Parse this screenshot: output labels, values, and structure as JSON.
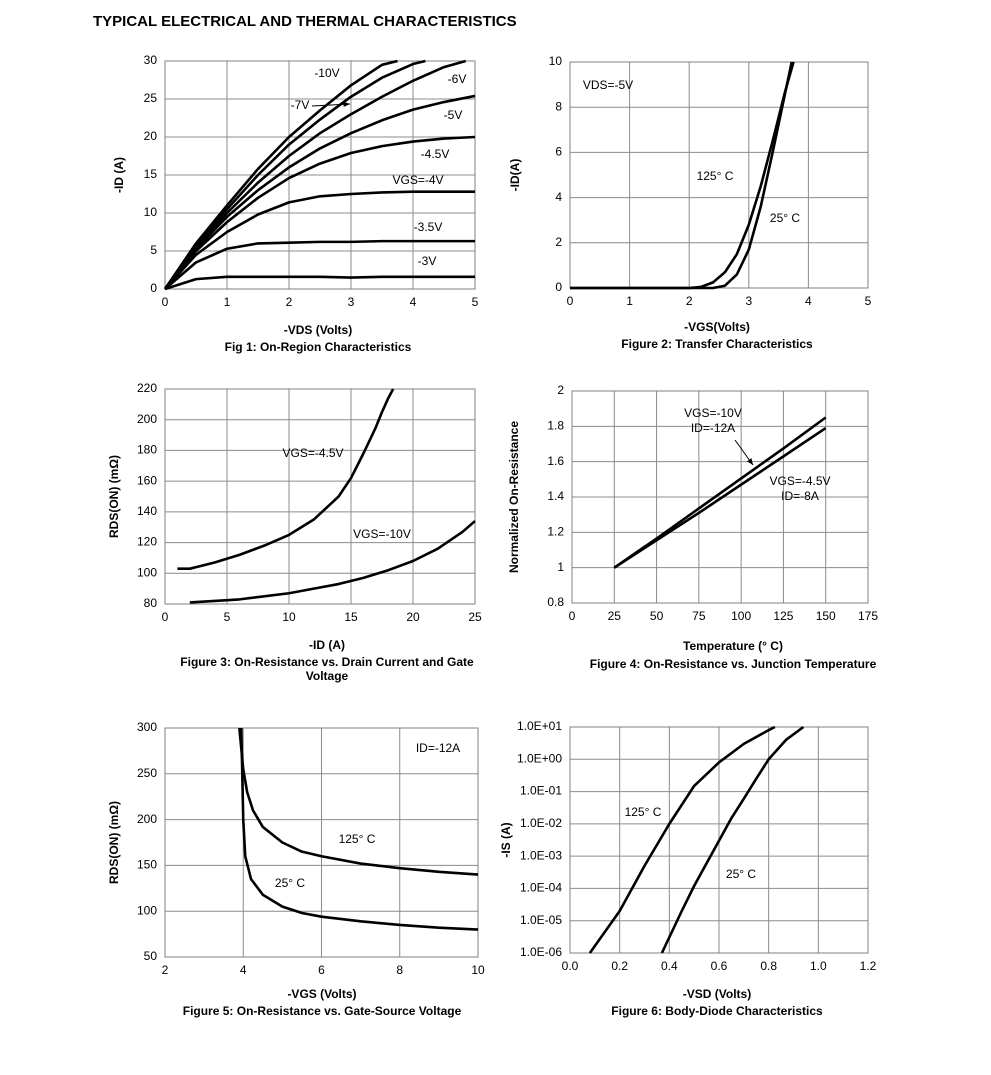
{
  "title": "TYPICAL ELECTRICAL AND THERMAL CHARACTERISTICS",
  "chart_data": [
    {
      "type": "line",
      "caption": "Fig 1: On-Region Characteristics",
      "xlabel": "-VDS (Volts)",
      "ylabel": "-ID (A)",
      "xlim": [
        0,
        5
      ],
      "xticks": [
        0,
        1,
        2,
        3,
        4,
        5
      ],
      "ylim": [
        0,
        30
      ],
      "yticks": [
        0,
        5,
        10,
        15,
        20,
        25,
        30
      ],
      "grid": true,
      "series": [
        {
          "name": "-10V",
          "color": "#000000",
          "x": [
            0,
            0.5,
            1,
            1.5,
            2,
            2.5,
            3,
            3.5,
            3.75
          ],
          "values": [
            0,
            6,
            11,
            15.8,
            20,
            23.5,
            26.8,
            29.5,
            30
          ]
        },
        {
          "name": "-7V",
          "color": "#000000",
          "x": [
            0,
            0.5,
            1,
            1.5,
            2,
            2.5,
            3,
            3.5,
            4,
            4.2
          ],
          "values": [
            0,
            5.8,
            10.5,
            15,
            19,
            22.3,
            25.3,
            27.8,
            29.6,
            30
          ]
        },
        {
          "name": "-6V",
          "color": "#000000",
          "x": [
            0,
            0.5,
            1,
            1.5,
            2,
            2.5,
            3,
            3.5,
            4,
            4.5,
            4.85
          ],
          "values": [
            0,
            5.6,
            10,
            14,
            17.5,
            20.5,
            23,
            25.3,
            27.4,
            29.2,
            30
          ]
        },
        {
          "name": "-5V",
          "color": "#000000",
          "x": [
            0,
            0.5,
            1,
            1.5,
            2,
            2.5,
            3,
            3.5,
            4,
            4.5,
            5
          ],
          "values": [
            0,
            5.3,
            9.5,
            13,
            16,
            18.5,
            20.5,
            22.2,
            23.6,
            24.6,
            25.4
          ]
        },
        {
          "name": "-4.5V",
          "color": "#000000",
          "x": [
            0,
            0.5,
            1,
            1.5,
            2,
            2.5,
            3,
            3.5,
            4,
            4.5,
            5
          ],
          "values": [
            0,
            5,
            8.8,
            12,
            14.6,
            16.5,
            17.9,
            18.8,
            19.4,
            19.8,
            20
          ]
        },
        {
          "name": "VGS=-4V",
          "color": "#000000",
          "x": [
            0,
            0.5,
            1,
            1.5,
            2,
            2.5,
            3,
            3.5,
            4,
            4.5,
            5
          ],
          "values": [
            0,
            4.5,
            7.5,
            9.8,
            11.4,
            12.2,
            12.5,
            12.7,
            12.8,
            12.8,
            12.8
          ]
        },
        {
          "name": "-3.5V",
          "color": "#000000",
          "x": [
            0,
            0.5,
            1,
            1.5,
            2,
            2.5,
            3,
            3.5,
            4,
            4.5,
            5
          ],
          "values": [
            0,
            3.5,
            5.3,
            6,
            6.1,
            6.2,
            6.2,
            6.3,
            6.3,
            6.3,
            6.3
          ]
        },
        {
          "name": "-3V",
          "color": "#000000",
          "x": [
            0,
            0.5,
            1,
            1.5,
            2,
            2.5,
            3,
            3.5,
            4,
            4.5,
            5
          ],
          "values": [
            0,
            1.3,
            1.6,
            1.6,
            1.6,
            1.6,
            1.5,
            1.6,
            1.6,
            1.6,
            1.6
          ]
        }
      ]
    },
    {
      "type": "line",
      "caption": "Figure 2: Transfer Characteristics",
      "xlabel": "-VGS(Volts)",
      "ylabel": "-ID(A)",
      "xlim": [
        0,
        5
      ],
      "xticks": [
        0,
        1,
        2,
        3,
        4,
        5
      ],
      "ylim": [
        0,
        10
      ],
      "yticks": [
        0,
        2,
        4,
        6,
        8,
        10
      ],
      "grid": true,
      "annotations": [
        "VDS=-5V"
      ],
      "series": [
        {
          "name": "125° C",
          "color": "#000000",
          "x": [
            0,
            2,
            2.2,
            2.4,
            2.6,
            2.8,
            3,
            3.2,
            3.4,
            3.6,
            3.75
          ],
          "values": [
            0,
            0,
            0.05,
            0.25,
            0.7,
            1.5,
            2.8,
            4.5,
            6.5,
            8.6,
            10
          ]
        },
        {
          "name": "25° C",
          "color": "#000000",
          "x": [
            0,
            2.4,
            2.6,
            2.8,
            3,
            3.2,
            3.4,
            3.6,
            3.72
          ],
          "values": [
            0,
            0,
            0.1,
            0.6,
            1.7,
            3.6,
            6,
            8.5,
            10
          ]
        }
      ]
    },
    {
      "type": "line",
      "caption": "Figure 3: On-Resistance vs. Drain Current and Gate Voltage",
      "xlabel": "-ID (A)",
      "ylabel": "RDS(ON) (mΩ)",
      "xlim": [
        0,
        25
      ],
      "xticks": [
        0,
        5,
        10,
        15,
        20,
        25
      ],
      "ylim": [
        80,
        220
      ],
      "yticks": [
        80,
        100,
        120,
        140,
        160,
        180,
        200,
        220
      ],
      "grid": true,
      "series": [
        {
          "name": "VGS=-4.5V",
          "color": "#000000",
          "x": [
            1,
            2,
            3,
            4,
            6,
            8,
            10,
            12,
            14,
            15,
            16,
            17,
            17.5,
            18,
            18.4
          ],
          "values": [
            103,
            103,
            105,
            107,
            112,
            118,
            125,
            135,
            150,
            162,
            178,
            195,
            205,
            214,
            220
          ]
        },
        {
          "name": "VGS=-10V",
          "color": "#000000",
          "x": [
            2,
            4,
            6,
            8,
            10,
            12,
            14,
            16,
            18,
            20,
            22,
            24,
            25
          ],
          "values": [
            81,
            82,
            83,
            85,
            87,
            90,
            93,
            97,
            102,
            108,
            116,
            127,
            134
          ]
        }
      ]
    },
    {
      "type": "line",
      "caption": "Figure 4: On-Resistance vs. Junction Temperature",
      "xlabel": "Temperature (° C)",
      "ylabel": "Normalized On-Resistance",
      "xlim": [
        0,
        175
      ],
      "xticks": [
        0,
        25,
        50,
        75,
        100,
        125,
        150,
        175
      ],
      "ylim": [
        0.8,
        2
      ],
      "yticks": [
        0.8,
        1,
        1.2,
        1.4,
        1.6,
        1.8,
        2
      ],
      "grid": true,
      "series": [
        {
          "name": [
            "VGS=-10V",
            "ID=-12A"
          ],
          "color": "#000000",
          "x": [
            25,
            50,
            75,
            100,
            125,
            150
          ],
          "values": [
            1,
            1.165,
            1.335,
            1.505,
            1.675,
            1.85
          ]
        },
        {
          "name": [
            "VGS=-4.5V",
            "ID=-8A"
          ],
          "color": "#000000",
          "x": [
            25,
            50,
            75,
            100,
            125,
            150
          ],
          "values": [
            1,
            1.155,
            1.31,
            1.47,
            1.63,
            1.79
          ]
        }
      ]
    },
    {
      "type": "line",
      "caption": "Figure 5: On-Resistance vs. Gate-Source Voltage",
      "xlabel": "-VGS (Volts)",
      "ylabel": "RDS(ON) (mΩ)",
      "xlim": [
        2,
        10
      ],
      "xticks": [
        2,
        4,
        6,
        8,
        10
      ],
      "ylim": [
        50,
        300
      ],
      "yticks": [
        50,
        100,
        150,
        200,
        250,
        300
      ],
      "grid": true,
      "annotations": [
        "ID=-12A"
      ],
      "series": [
        {
          "name": "125° C",
          "color": "#000000",
          "x": [
            3.9,
            4,
            4.1,
            4.25,
            4.5,
            5,
            5.5,
            6,
            7,
            8,
            9,
            10
          ],
          "values": [
            300,
            255,
            230,
            210,
            192,
            175,
            165,
            160,
            152,
            147,
            143,
            140
          ]
        },
        {
          "name": "25° C",
          "color": "#000000",
          "x": [
            3.95,
            4,
            4.05,
            4.2,
            4.5,
            5,
            5.5,
            6,
            7,
            8,
            9,
            10
          ],
          "values": [
            300,
            200,
            160,
            135,
            118,
            105,
            98,
            94,
            89,
            85,
            82,
            80
          ]
        }
      ]
    },
    {
      "type": "line",
      "caption": "Figure 6: Body-Diode Characteristics",
      "xlabel": "-VSD (Volts)",
      "ylabel": "-IS (A)",
      "xlim": [
        0,
        1.2
      ],
      "xticks": [
        {
          "value": 0,
          "label": "0.0"
        },
        0.2,
        0.4,
        0.6,
        0.8,
        {
          "value": 1,
          "label": "1.0"
        },
        1.2
      ],
      "ylim": [
        1e-06,
        10
      ],
      "log_y": true,
      "yticks": [
        {
          "value": 1e-06,
          "label": "1.0E-06"
        },
        {
          "value": 1e-05,
          "label": "1.0E-05"
        },
        {
          "value": 0.0001,
          "label": "1.0E-04"
        },
        {
          "value": 0.001,
          "label": "1.0E-03"
        },
        {
          "value": 0.01,
          "label": "1.0E-02"
        },
        {
          "value": 0.1,
          "label": "1.0E-01"
        },
        {
          "value": 1,
          "label": "1.0E+00"
        },
        {
          "value": 10,
          "label": "1.0E+01"
        }
      ],
      "grid": true,
      "series": [
        {
          "name": "125° C",
          "color": "#000000",
          "x": [
            0.08,
            0.2,
            0.3,
            0.4,
            0.5,
            0.6,
            0.7,
            0.8,
            0.825
          ],
          "values": [
            1e-06,
            2e-05,
            0.0005,
            0.01,
            0.15,
            0.8,
            3,
            8,
            10
          ]
        },
        {
          "name": "25° C",
          "color": "#000000",
          "x": [
            0.37,
            0.45,
            0.5,
            0.55,
            0.6,
            0.65,
            0.7,
            0.75,
            0.8,
            0.87,
            0.94
          ],
          "values": [
            1e-06,
            2e-05,
            0.00012,
            0.0006,
            0.003,
            0.015,
            0.06,
            0.25,
            1,
            4,
            10
          ]
        }
      ]
    }
  ]
}
